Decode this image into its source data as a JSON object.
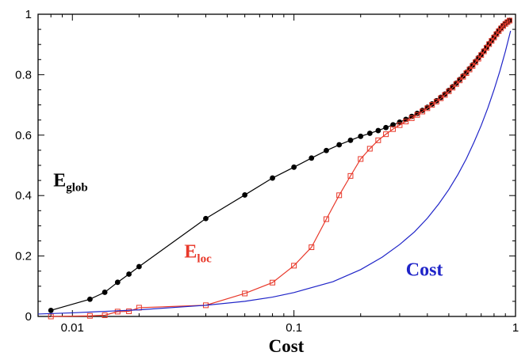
{
  "chart_data": {
    "type": "line",
    "xlabel": "Cost",
    "ylabel": "",
    "xscale": "log",
    "xlim": [
      0.007,
      1.0
    ],
    "ylim": [
      0,
      1
    ],
    "grid": false,
    "x_ticks": [
      {
        "value": 0.01,
        "label": "0.01"
      },
      {
        "value": 0.1,
        "label": "0.1"
      },
      {
        "value": 1,
        "label": "1"
      }
    ],
    "y_ticks": [
      {
        "value": 0,
        "label": "0"
      },
      {
        "value": 0.2,
        "label": "0.2"
      },
      {
        "value": 0.4,
        "label": "0.4"
      },
      {
        "value": 0.6,
        "label": "0.6"
      },
      {
        "value": 0.8,
        "label": "0.8"
      },
      {
        "value": 1,
        "label": "1"
      }
    ],
    "annotations": [
      {
        "text": "E",
        "sub": "glob",
        "color": "#000000",
        "x": 0.0082,
        "y": 0.43
      },
      {
        "text": "E",
        "sub": "loc",
        "color": "#e8382a",
        "x": 0.032,
        "y": 0.195
      },
      {
        "text": "Cost",
        "sub": "",
        "color": "#1f24c8",
        "x": 0.32,
        "y": 0.135
      }
    ],
    "series": [
      {
        "color": "#000000",
        "marker": "filled-circle",
        "x": [
          0.008,
          0.012,
          0.014,
          0.016,
          0.018,
          0.02,
          0.04,
          0.06,
          0.08,
          0.1,
          0.12,
          0.14,
          0.16,
          0.18,
          0.2,
          0.22,
          0.24,
          0.26,
          0.28,
          0.3,
          0.32,
          0.34,
          0.36,
          0.38,
          0.4,
          0.42,
          0.44,
          0.46,
          0.48,
          0.5,
          0.52,
          0.54,
          0.56,
          0.58,
          0.6,
          0.62,
          0.64,
          0.66,
          0.68,
          0.7,
          0.72,
          0.74,
          0.76,
          0.78,
          0.8,
          0.82,
          0.84,
          0.86,
          0.88,
          0.9,
          0.92,
          0.94
        ],
        "y": [
          0.02,
          0.057,
          0.08,
          0.113,
          0.14,
          0.165,
          0.324,
          0.402,
          0.458,
          0.494,
          0.524,
          0.549,
          0.568,
          0.583,
          0.596,
          0.606,
          0.615,
          0.625,
          0.634,
          0.643,
          0.652,
          0.662,
          0.672,
          0.682,
          0.692,
          0.703,
          0.714,
          0.725,
          0.736,
          0.748,
          0.76,
          0.772,
          0.784,
          0.796,
          0.808,
          0.82,
          0.832,
          0.844,
          0.856,
          0.867,
          0.879,
          0.891,
          0.903,
          0.914,
          0.925,
          0.936,
          0.946,
          0.955,
          0.963,
          0.97,
          0.975,
          0.98
        ]
      },
      {
        "color": "#e8382a",
        "marker": "open-square",
        "x": [
          0.008,
          0.012,
          0.014,
          0.016,
          0.018,
          0.02,
          0.04,
          0.06,
          0.08,
          0.1,
          0.12,
          0.14,
          0.16,
          0.18,
          0.2,
          0.22,
          0.24,
          0.26,
          0.28,
          0.3,
          0.32,
          0.34,
          0.36,
          0.38,
          0.4,
          0.42,
          0.44,
          0.46,
          0.48,
          0.5,
          0.52,
          0.54,
          0.56,
          0.58,
          0.6,
          0.62,
          0.64,
          0.66,
          0.68,
          0.7,
          0.72,
          0.74,
          0.76,
          0.78,
          0.8,
          0.82,
          0.84,
          0.86,
          0.88,
          0.9,
          0.92,
          0.94
        ],
        "y": [
          0.0,
          0.002,
          0.004,
          0.016,
          0.017,
          0.029,
          0.037,
          0.076,
          0.112,
          0.168,
          0.229,
          0.322,
          0.401,
          0.465,
          0.521,
          0.555,
          0.583,
          0.603,
          0.62,
          0.633,
          0.645,
          0.656,
          0.667,
          0.678,
          0.689,
          0.7,
          0.711,
          0.722,
          0.733,
          0.745,
          0.757,
          0.769,
          0.781,
          0.793,
          0.805,
          0.817,
          0.829,
          0.841,
          0.853,
          0.865,
          0.877,
          0.889,
          0.901,
          0.912,
          0.923,
          0.934,
          0.944,
          0.953,
          0.961,
          0.968,
          0.974,
          0.979
        ]
      },
      {
        "color": "#1f24c8",
        "marker": "none",
        "x": [
          0.007,
          0.01,
          0.02,
          0.04,
          0.06,
          0.08,
          0.1,
          0.15,
          0.2,
          0.25,
          0.3,
          0.35,
          0.4,
          0.45,
          0.5,
          0.55,
          0.6,
          0.65,
          0.7,
          0.75,
          0.8,
          0.85,
          0.9,
          0.95
        ],
        "y": [
          0.008,
          0.012,
          0.022,
          0.037,
          0.05,
          0.064,
          0.079,
          0.115,
          0.155,
          0.196,
          0.238,
          0.28,
          0.325,
          0.372,
          0.42,
          0.47,
          0.522,
          0.577,
          0.632,
          0.69,
          0.75,
          0.812,
          0.877,
          0.945
        ]
      }
    ]
  }
}
